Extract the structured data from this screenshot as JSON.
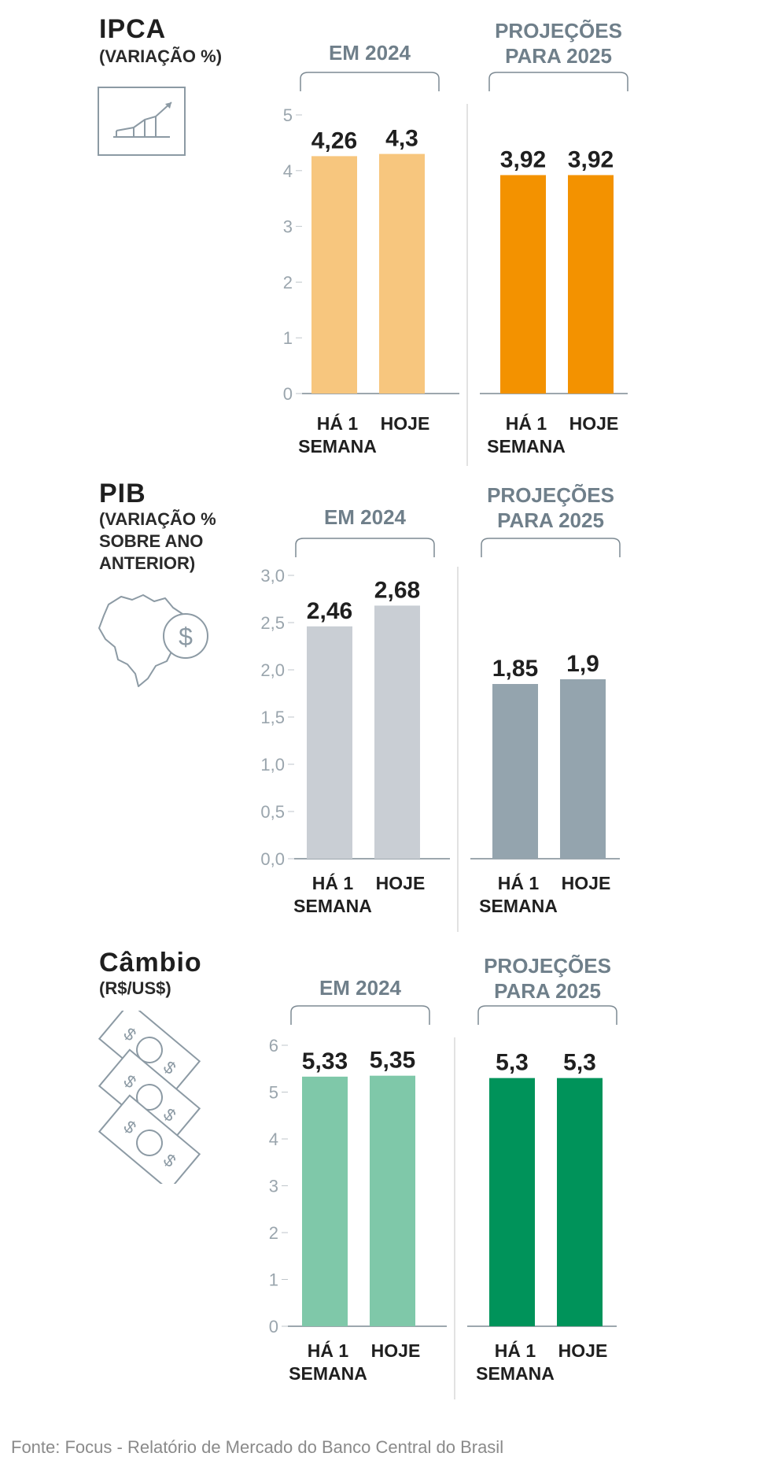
{
  "source": "Fonte: Focus - Relatório de Mercado do Banco Central do Brasil",
  "chart_data": [
    {
      "type": "bar",
      "title": "IPCA",
      "subtitle": "(VARIAÇÃO %)",
      "icon": "line-chart-icon",
      "ylim": [
        0,
        5
      ],
      "yticks": [
        "0",
        "1",
        "2",
        "3",
        "4",
        "5"
      ],
      "groups": [
        {
          "label": "EM 2024",
          "color": "#f7c67e",
          "bars": [
            {
              "category": "HÁ 1\nSEMANA",
              "value": 4.26,
              "label": "4,26"
            },
            {
              "category": "HOJE",
              "value": 4.3,
              "label": "4,3"
            }
          ]
        },
        {
          "label": "PROJEÇÕES\nPARA 2025",
          "color": "#f39200",
          "bars": [
            {
              "category": "HÁ 1\nSEMANA",
              "value": 3.92,
              "label": "3,92"
            },
            {
              "category": "HOJE",
              "value": 3.92,
              "label": "3,92"
            }
          ]
        }
      ]
    },
    {
      "type": "bar",
      "title": "PIB",
      "subtitle": "(VARIAÇÃO %\nSOBRE ANO\nANTERIOR)",
      "icon": "brazil-map-dollar-icon",
      "ylim": [
        0,
        3
      ],
      "yticks": [
        "0,0",
        "0,5",
        "1,0",
        "1,5",
        "2,0",
        "2,5",
        "3,0"
      ],
      "groups": [
        {
          "label": "EM 2024",
          "color": "#c9ced4",
          "bars": [
            {
              "category": "HÁ 1\nSEMANA",
              "value": 2.46,
              "label": "2,46"
            },
            {
              "category": "HOJE",
              "value": 2.68,
              "label": "2,68"
            }
          ]
        },
        {
          "label": "PROJEÇÕES\nPARA 2025",
          "color": "#94a4ae",
          "bars": [
            {
              "category": "HÁ 1\nSEMANA",
              "value": 1.85,
              "label": "1,85"
            },
            {
              "category": "HOJE",
              "value": 1.9,
              "label": "1,9"
            }
          ]
        }
      ]
    },
    {
      "type": "bar",
      "title": "Câmbio",
      "subtitle": "(R$/US$)",
      "icon": "banknotes-icon",
      "ylim": [
        0,
        6
      ],
      "yticks": [
        "0",
        "1",
        "2",
        "3",
        "4",
        "5",
        "6"
      ],
      "groups": [
        {
          "label": "EM 2024",
          "color": "#7fc8a9",
          "bars": [
            {
              "category": "HÁ 1\nSEMANA",
              "value": 5.33,
              "label": "5,33"
            },
            {
              "category": "HOJE",
              "value": 5.35,
              "label": "5,35"
            }
          ]
        },
        {
          "label": "PROJEÇÕES\nPARA 2025",
          "color": "#00935a",
          "bars": [
            {
              "category": "HÁ 1\nSEMANA",
              "value": 5.3,
              "label": "5,3"
            },
            {
              "category": "HOJE",
              "value": 5.3,
              "label": "5,3"
            }
          ]
        }
      ]
    }
  ]
}
